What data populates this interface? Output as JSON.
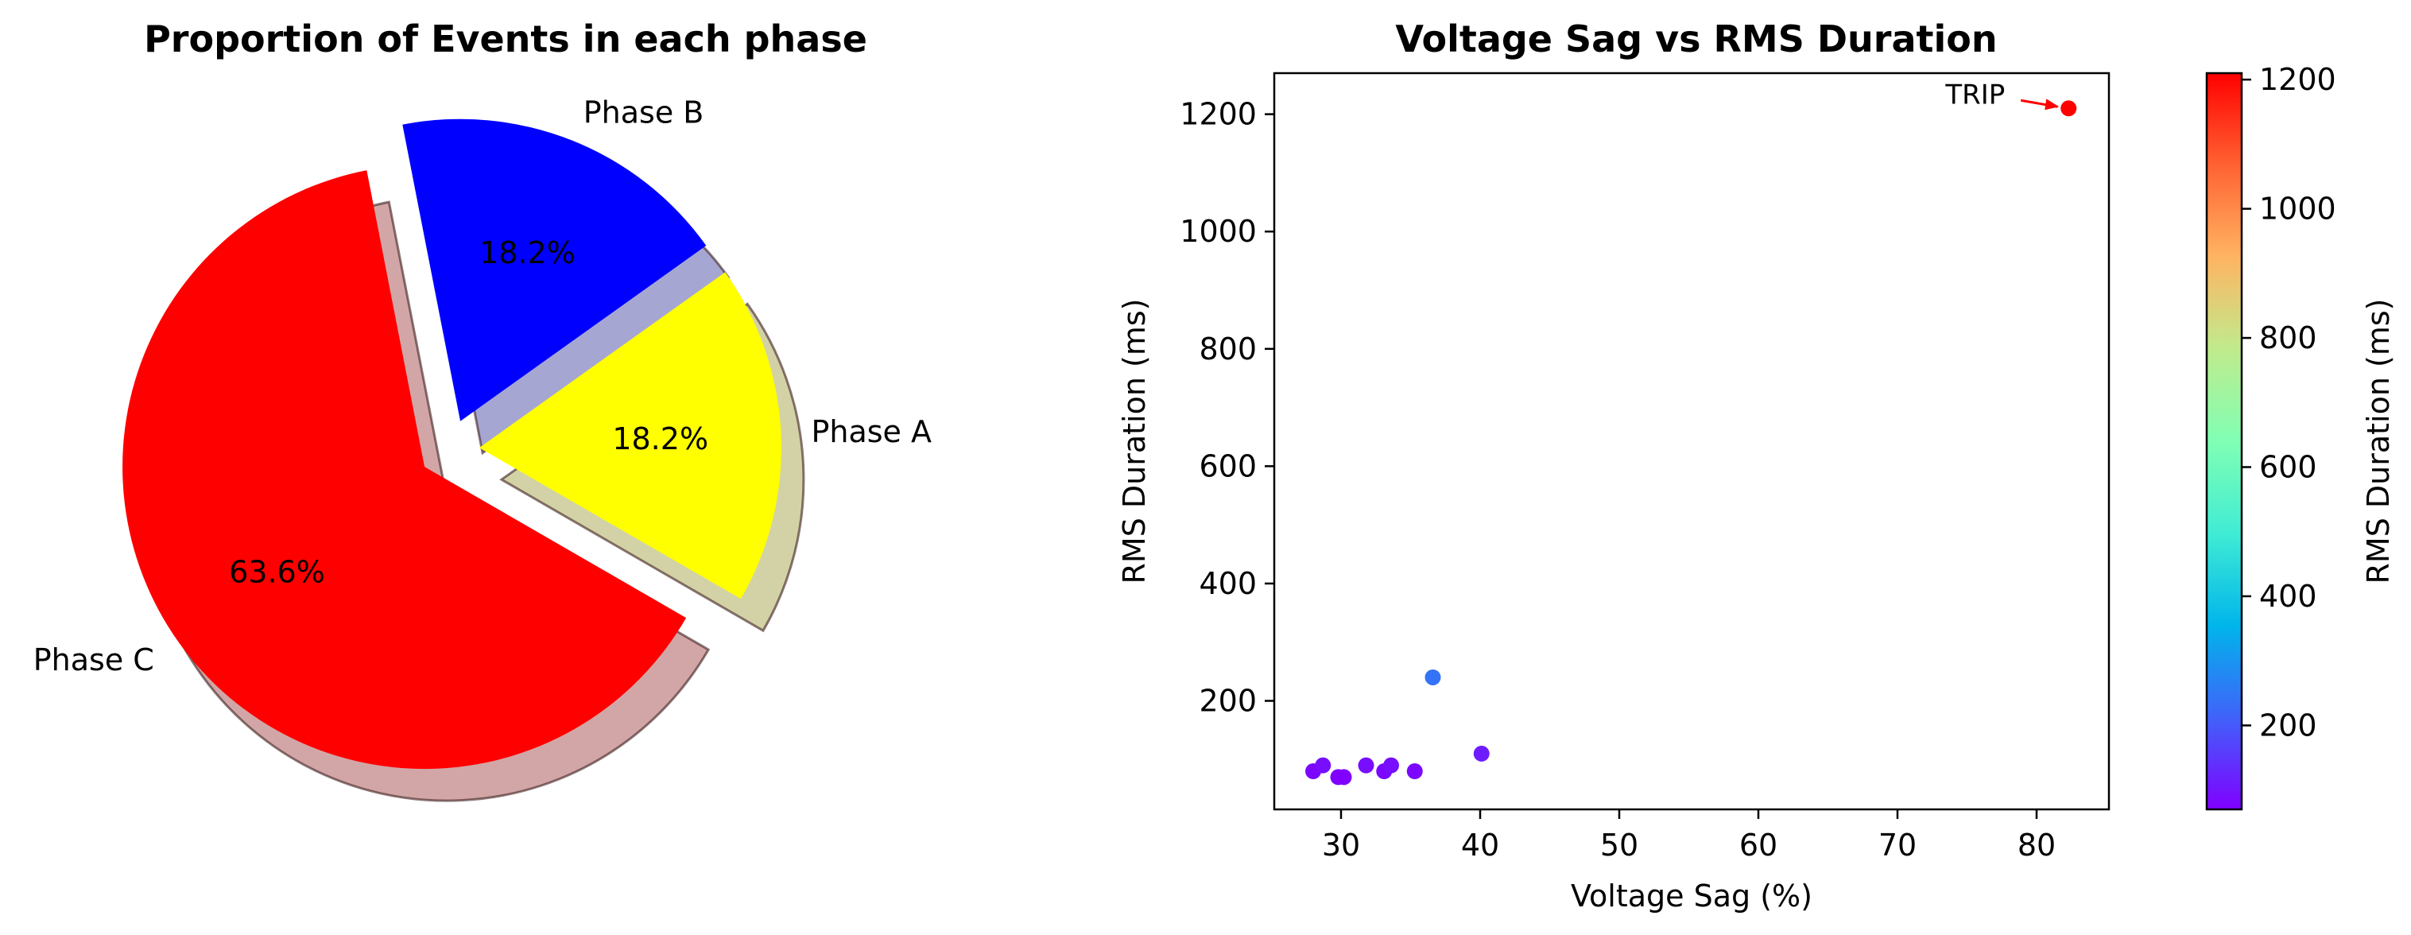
{
  "chart_data": [
    {
      "type": "pie",
      "title": "Proportion of Events in each phase",
      "slices": [
        {
          "label": "Phase A",
          "value": 18.2,
          "pct_label": "18.2%",
          "color": "#ffff00",
          "explode": 0.1
        },
        {
          "label": "Phase B",
          "value": 18.2,
          "pct_label": "18.2%",
          "color": "#0000ff",
          "explode": 0.1
        },
        {
          "label": "Phase C",
          "value": 63.6,
          "pct_label": "63.6%",
          "color": "#ff0000",
          "explode": 0.1
        }
      ],
      "start_angle_deg": -30,
      "shadow": true
    },
    {
      "type": "scatter",
      "title": "Voltage Sag vs RMS Duration",
      "xlabel": "Voltage Sag (%)",
      "ylabel": "RMS Duration (ms)",
      "xlim": [
        25.2,
        85.2
      ],
      "ylim": [
        15,
        1270
      ],
      "xticks": [
        "30",
        "40",
        "50",
        "60",
        "70",
        "80"
      ],
      "yticks": [
        "200",
        "400",
        "600",
        "800",
        "1000",
        "1200"
      ],
      "points": [
        {
          "x": 28.0,
          "y": 80
        },
        {
          "x": 28.7,
          "y": 90
        },
        {
          "x": 29.8,
          "y": 70
        },
        {
          "x": 30.2,
          "y": 70
        },
        {
          "x": 31.8,
          "y": 90
        },
        {
          "x": 33.1,
          "y": 80
        },
        {
          "x": 33.6,
          "y": 90
        },
        {
          "x": 35.3,
          "y": 80
        },
        {
          "x": 36.6,
          "y": 240
        },
        {
          "x": 40.1,
          "y": 110
        },
        {
          "x": 82.3,
          "y": 1210
        }
      ],
      "annotation": {
        "text": "TRIP",
        "x": 82.3,
        "y": 1210,
        "color": "#ff0000"
      },
      "colormap": "rainbow",
      "colorbar": {
        "label": "RMS Duration (ms)",
        "range": [
          70,
          1210
        ],
        "ticks": [
          "200",
          "400",
          "600",
          "800",
          "1000",
          "1200"
        ]
      }
    }
  ]
}
